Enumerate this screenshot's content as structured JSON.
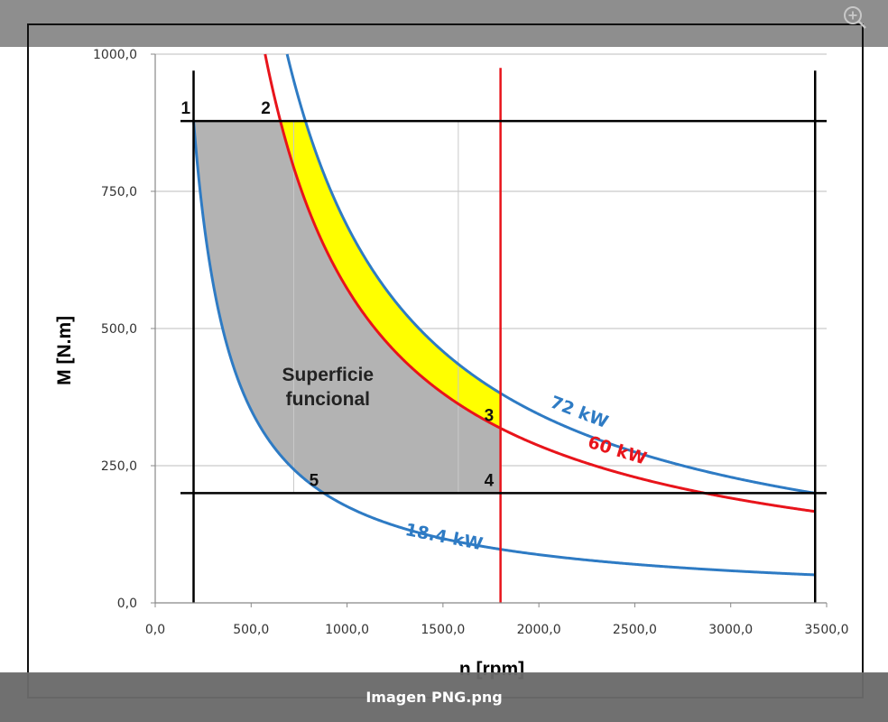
{
  "viewer": {
    "caption": "Imagen PNG.png",
    "zoom_icon": "zoom-in-icon"
  },
  "chart_data": {
    "type": "line",
    "xlabel": "n [rpm]",
    "ylabel": "M [N.m]",
    "xlim": [
      0,
      3500
    ],
    "ylim": [
      0,
      1000
    ],
    "x_ticks": [
      "0,0",
      "500,0",
      "1000,0",
      "1500,0",
      "2000,0",
      "2500,0",
      "3000,0",
      "3500,0"
    ],
    "y_ticks": [
      "0,0",
      "250,0",
      "500,0",
      "750,0",
      "1000,0"
    ],
    "grid": "horizontal",
    "series": [
      {
        "name": "72 kW",
        "power_kw": 72,
        "color": "#2e7bc4",
        "x": [
          685,
          800,
          1000,
          1250,
          1500,
          1800,
          2200,
          2600,
          3000,
          3440
        ],
        "y": [
          1000,
          860,
          688,
          550,
          458,
          382,
          313,
          264,
          229,
          200
        ]
      },
      {
        "name": "60 kW",
        "power_kw": 60,
        "color": "#e8141b",
        "x": [
          573,
          655,
          800,
          1000,
          1250,
          1500,
          1800,
          2200,
          2600,
          3000,
          3440
        ],
        "y": [
          1000,
          875,
          716,
          573,
          458,
          382,
          318,
          260,
          220,
          191,
          167
        ]
      },
      {
        "name": "18.4 kW",
        "power_kw": 18.4,
        "color": "#2e7bc4",
        "x": [
          200,
          300,
          400,
          600,
          878,
          1200,
          1800,
          2400,
          3000,
          3440
        ],
        "y": [
          878,
          586,
          439,
          293,
          200,
          146,
          98,
          73,
          59,
          51
        ]
      }
    ],
    "lines": [
      {
        "type": "vertical",
        "x": 200,
        "color": "#000000"
      },
      {
        "type": "vertical",
        "x": 1800,
        "color": "#e8141b"
      },
      {
        "type": "vertical",
        "x": 3440,
        "color": "#000000"
      },
      {
        "type": "horizontal",
        "y": 878,
        "color": "#000000"
      },
      {
        "type": "horizontal",
        "y": 200,
        "color": "#000000"
      }
    ],
    "regions": [
      {
        "label": "Superficie funcional",
        "color": "#b3b3b3"
      },
      {
        "label": "",
        "color": "#ffff00"
      }
    ],
    "annotations": [
      {
        "text": "1",
        "x": 200,
        "y": 878
      },
      {
        "text": "2",
        "x": 655,
        "y": 878
      },
      {
        "text": "3",
        "x": 1800,
        "y": 318
      },
      {
        "text": "4",
        "x": 1800,
        "y": 200
      },
      {
        "text": "5",
        "x": 878,
        "y": 200
      }
    ],
    "area_label_line1": "Superficie",
    "area_label_line2": "funcional"
  }
}
